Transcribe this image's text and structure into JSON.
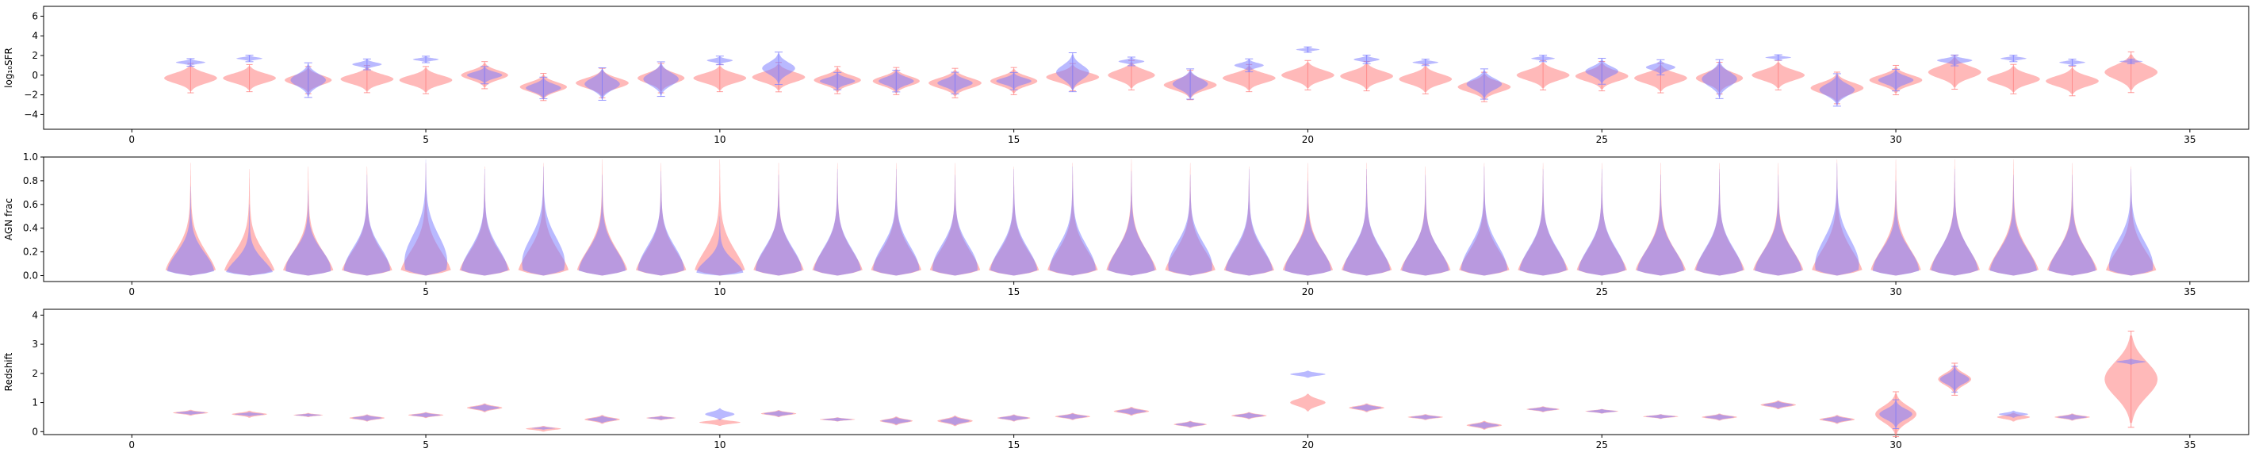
{
  "chart_data": [
    {
      "type": "violin",
      "ylabel": "log₁₀SFR",
      "xlim": [
        -1.5,
        36
      ],
      "ylim": [
        -5.5,
        7
      ],
      "xticks": [
        0,
        5,
        10,
        15,
        20,
        25,
        30,
        35
      ],
      "yticks": [
        -4,
        -2,
        0,
        2,
        4,
        6
      ],
      "colors": {
        "red": "#ff7f7f",
        "blue": "#7f7fff"
      },
      "red": {
        "x": [
          1,
          2,
          3,
          4,
          5,
          6,
          7,
          8,
          9,
          10,
          11,
          12,
          13,
          14,
          15,
          16,
          17,
          18,
          19,
          20,
          21,
          22,
          23,
          24,
          25,
          26,
          27,
          28,
          29,
          30,
          31,
          32,
          33,
          34
        ],
        "center": [
          -0.3,
          -0.3,
          -0.5,
          -0.4,
          -0.5,
          0,
          -1.2,
          -0.8,
          -0.3,
          -0.3,
          -0.2,
          -0.5,
          -0.6,
          -0.8,
          -0.6,
          -0.2,
          0,
          -1,
          -0.3,
          0,
          -0.1,
          -0.4,
          -1.2,
          0,
          -0.1,
          -0.3,
          -0.3,
          0,
          -1.3,
          -0.5,
          0.3,
          -0.4,
          -0.6,
          0.3
        ],
        "spread": [
          1.3,
          1.2,
          1.2,
          1.2,
          1.2,
          1.2,
          1.2,
          1.3,
          1.3,
          1.2,
          1.3,
          1.2,
          1.2,
          1.3,
          1.2,
          1.2,
          1.3,
          1.3,
          1.2,
          1.3,
          1.3,
          1.3,
          1.3,
          1.3,
          1.3,
          1.3,
          1.4,
          1.3,
          1.4,
          1.3,
          1.5,
          1.3,
          1.3,
          1.8
        ],
        "width": [
          0.45,
          0.45,
          0.4,
          0.45,
          0.45,
          0.4,
          0.4,
          0.45,
          0.4,
          0.45,
          0.45,
          0.4,
          0.4,
          0.45,
          0.4,
          0.45,
          0.4,
          0.45,
          0.45,
          0.45,
          0.45,
          0.45,
          0.45,
          0.45,
          0.45,
          0.45,
          0.4,
          0.45,
          0.45,
          0.45,
          0.45,
          0.45,
          0.45,
          0.45
        ]
      },
      "blue": {
        "x": [
          1,
          2,
          3,
          4,
          5,
          6,
          7,
          8,
          9,
          10,
          11,
          12,
          13,
          14,
          15,
          16,
          17,
          18,
          19,
          20,
          21,
          22,
          23,
          24,
          25,
          26,
          27,
          28,
          29,
          30,
          31,
          32,
          33,
          34
        ],
        "center": [
          1.3,
          1.7,
          -0.5,
          1.1,
          1.6,
          0,
          -1.3,
          -0.9,
          -0.4,
          1.5,
          0.7,
          -0.6,
          -0.6,
          -0.8,
          -0.6,
          0.3,
          1.4,
          -0.9,
          1,
          2.6,
          1.6,
          1.3,
          -0.9,
          1.7,
          0.4,
          0.8,
          -0.4,
          1.8,
          -1.5,
          -0.5,
          1.5,
          1.7,
          1.3,
          1.4
        ],
        "spread": [
          0.35,
          0.3,
          1.6,
          0.5,
          0.3,
          0.8,
          1,
          1.5,
          1.6,
          0.4,
          1.5,
          0.8,
          1,
          1,
          0.8,
          1.8,
          0.4,
          1.4,
          0.6,
          0.25,
          0.4,
          0.3,
          1.4,
          0.3,
          1.2,
          0.7,
          1.8,
          0.25,
          1.5,
          1,
          0.5,
          0.3,
          0.3,
          0.2
        ],
        "width": [
          0.25,
          0.22,
          0.3,
          0.25,
          0.22,
          0.3,
          0.3,
          0.3,
          0.3,
          0.22,
          0.28,
          0.3,
          0.3,
          0.3,
          0.3,
          0.28,
          0.22,
          0.3,
          0.25,
          0.2,
          0.22,
          0.22,
          0.3,
          0.2,
          0.28,
          0.25,
          0.3,
          0.22,
          0.3,
          0.3,
          0.3,
          0.22,
          0.22,
          0.2
        ]
      }
    },
    {
      "type": "violin",
      "ylabel": "AGN frac",
      "xlim": [
        -1.5,
        36
      ],
      "ylim": [
        -0.05,
        1.0
      ],
      "xticks": [
        0,
        5,
        10,
        15,
        20,
        25,
        30,
        35
      ],
      "yticks": [
        0.0,
        0.2,
        0.4,
        0.6,
        0.8,
        1.0
      ],
      "yticklabels": [
        "0.0",
        "0.2",
        "0.4",
        "0.6",
        "0.8",
        "1.0"
      ],
      "red_top": [
        0.95,
        0.9,
        0.92,
        0.92,
        0.95,
        0.92,
        0.95,
        0.98,
        0.95,
        0.98,
        0.95,
        0.95,
        0.95,
        0.95,
        0.92,
        0.95,
        0.98,
        0.95,
        0.92,
        0.95,
        0.95,
        0.92,
        0.95,
        0.95,
        0.95,
        0.95,
        0.95,
        0.95,
        0.98,
        0.98,
        0.98,
        0.98,
        0.95,
        0.92
      ],
      "blue_top": [
        0.75,
        0.6,
        0.72,
        0.85,
        0.98,
        0.9,
        0.92,
        0.85,
        0.88,
        0.5,
        0.85,
        0.9,
        0.9,
        0.85,
        0.9,
        0.92,
        0.88,
        0.85,
        0.9,
        0.8,
        0.9,
        0.85,
        0.92,
        0.9,
        0.9,
        0.85,
        0.9,
        0.85,
        0.95,
        0.8,
        0.9,
        0.85,
        0.85,
        0.9
      ],
      "blue_bulge": [
        0.15,
        0.05,
        0.25,
        0.2,
        0.35,
        0.15,
        0.35,
        0.15,
        0.2,
        0.15,
        0.2,
        0.15,
        0.2,
        0.25,
        0.15,
        0.2,
        0.15,
        0.3,
        0.15,
        0.2,
        0.15,
        0.15,
        0.2,
        0.15,
        0.15,
        0.15,
        0.15,
        0.15,
        0.3,
        0.2,
        0.15,
        0.15,
        0.15,
        0.3
      ]
    },
    {
      "type": "violin",
      "ylabel": "Redshift",
      "xlim": [
        -1.5,
        36
      ],
      "ylim": [
        -0.1,
        4.2
      ],
      "xticks": [
        0,
        5,
        10,
        15,
        20,
        25,
        30,
        35
      ],
      "yticks": [
        0,
        1,
        2,
        3,
        4
      ],
      "red": {
        "center": [
          0.65,
          0.6,
          0.57,
          0.47,
          0.57,
          0.82,
          0.1,
          0.42,
          0.47,
          0.32,
          0.62,
          0.42,
          0.37,
          0.37,
          0.47,
          0.52,
          0.7,
          0.25,
          0.55,
          1.0,
          0.82,
          0.5,
          0.22,
          0.77,
          0.7,
          0.52,
          0.5,
          0.92,
          0.42,
          0.6,
          1.8,
          0.5,
          0.5,
          1.8
        ],
        "spread": [
          0.1,
          0.12,
          0.07,
          0.12,
          0.1,
          0.15,
          0.1,
          0.15,
          0.08,
          0.12,
          0.12,
          0.07,
          0.15,
          0.18,
          0.12,
          0.12,
          0.15,
          0.12,
          0.12,
          0.3,
          0.15,
          0.1,
          0.15,
          0.1,
          0.08,
          0.08,
          0.12,
          0.15,
          0.15,
          0.7,
          0.5,
          0.15,
          0.12,
          1.5
        ],
        "width": [
          0.3,
          0.3,
          0.25,
          0.3,
          0.3,
          0.3,
          0.3,
          0.3,
          0.25,
          0.35,
          0.3,
          0.3,
          0.28,
          0.3,
          0.28,
          0.3,
          0.3,
          0.28,
          0.3,
          0.3,
          0.3,
          0.3,
          0.3,
          0.28,
          0.28,
          0.3,
          0.3,
          0.3,
          0.3,
          0.35,
          0.28,
          0.28,
          0.3,
          0.45
        ]
      },
      "blue": {
        "center": [
          0.65,
          0.6,
          0.57,
          0.47,
          0.57,
          0.82,
          0.12,
          0.42,
          0.47,
          0.6,
          0.62,
          0.42,
          0.37,
          0.37,
          0.47,
          0.52,
          0.7,
          0.25,
          0.55,
          1.97,
          0.82,
          0.5,
          0.22,
          0.77,
          0.7,
          0.52,
          0.5,
          0.92,
          0.42,
          0.6,
          1.8,
          0.6,
          0.5,
          2.4
        ],
        "spread": [
          0.07,
          0.07,
          0.05,
          0.1,
          0.08,
          0.12,
          0.05,
          0.12,
          0.06,
          0.2,
          0.1,
          0.06,
          0.12,
          0.15,
          0.1,
          0.1,
          0.12,
          0.1,
          0.1,
          0.12,
          0.12,
          0.08,
          0.12,
          0.08,
          0.07,
          0.07,
          0.1,
          0.12,
          0.12,
          0.45,
          0.4,
          0.12,
          0.1,
          0.1
        ],
        "width": [
          0.25,
          0.25,
          0.22,
          0.25,
          0.25,
          0.25,
          0.2,
          0.25,
          0.22,
          0.25,
          0.25,
          0.25,
          0.25,
          0.25,
          0.25,
          0.25,
          0.25,
          0.25,
          0.25,
          0.3,
          0.25,
          0.25,
          0.25,
          0.25,
          0.25,
          0.25,
          0.25,
          0.25,
          0.25,
          0.28,
          0.25,
          0.25,
          0.25,
          0.25
        ]
      }
    }
  ]
}
